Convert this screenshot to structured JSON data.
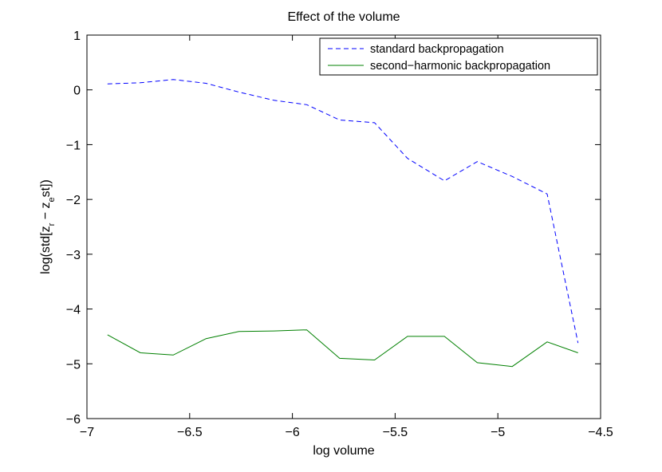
{
  "chart_data": {
    "type": "line",
    "title": "Effect of the volume",
    "xlabel": "log volume",
    "ylabel": {
      "prefix": "log(std[z",
      "sub1": "r",
      "middle": " − z",
      "sub2": "e",
      "suffix": "st])"
    },
    "xlim": [
      -7,
      -4.5
    ],
    "ylim": [
      -6,
      1
    ],
    "xticks": [
      -7,
      -6.5,
      -6,
      -5.5,
      -5,
      -4.5
    ],
    "xtick_labels": [
      "−7",
      "−6.5",
      "−6",
      "−5.5",
      "−5",
      "−4.5"
    ],
    "yticks": [
      1,
      0,
      -1,
      -2,
      -3,
      -4,
      -5,
      -6
    ],
    "ytick_labels": [
      "1",
      "0",
      "−1",
      "−2",
      "−3",
      "−4",
      "−5",
      "−6"
    ],
    "grid": false,
    "legend_position": "top-right",
    "x": [
      -6.9,
      -6.74,
      -6.58,
      -6.42,
      -6.26,
      -6.09,
      -5.93,
      -5.77,
      -5.6,
      -5.44,
      -5.26,
      -5.1,
      -4.93,
      -4.76,
      -4.61
    ],
    "series": [
      {
        "name": "standard backpropagation",
        "color": "#0000ff",
        "style": "dashed",
        "values": [
          0.11,
          0.13,
          0.19,
          0.12,
          -0.04,
          -0.19,
          -0.27,
          -0.55,
          -0.6,
          -1.25,
          -1.66,
          -1.31,
          -1.58,
          -1.9,
          -4.62
        ]
      },
      {
        "name": "second−harmonic backpropagation",
        "color": "#008000",
        "style": "solid",
        "values": [
          -4.47,
          -4.8,
          -4.84,
          -4.54,
          -4.41,
          -4.4,
          -4.38,
          -4.9,
          -4.93,
          -4.5,
          -4.5,
          -4.98,
          -5.05,
          -4.6,
          -4.8
        ]
      }
    ]
  }
}
